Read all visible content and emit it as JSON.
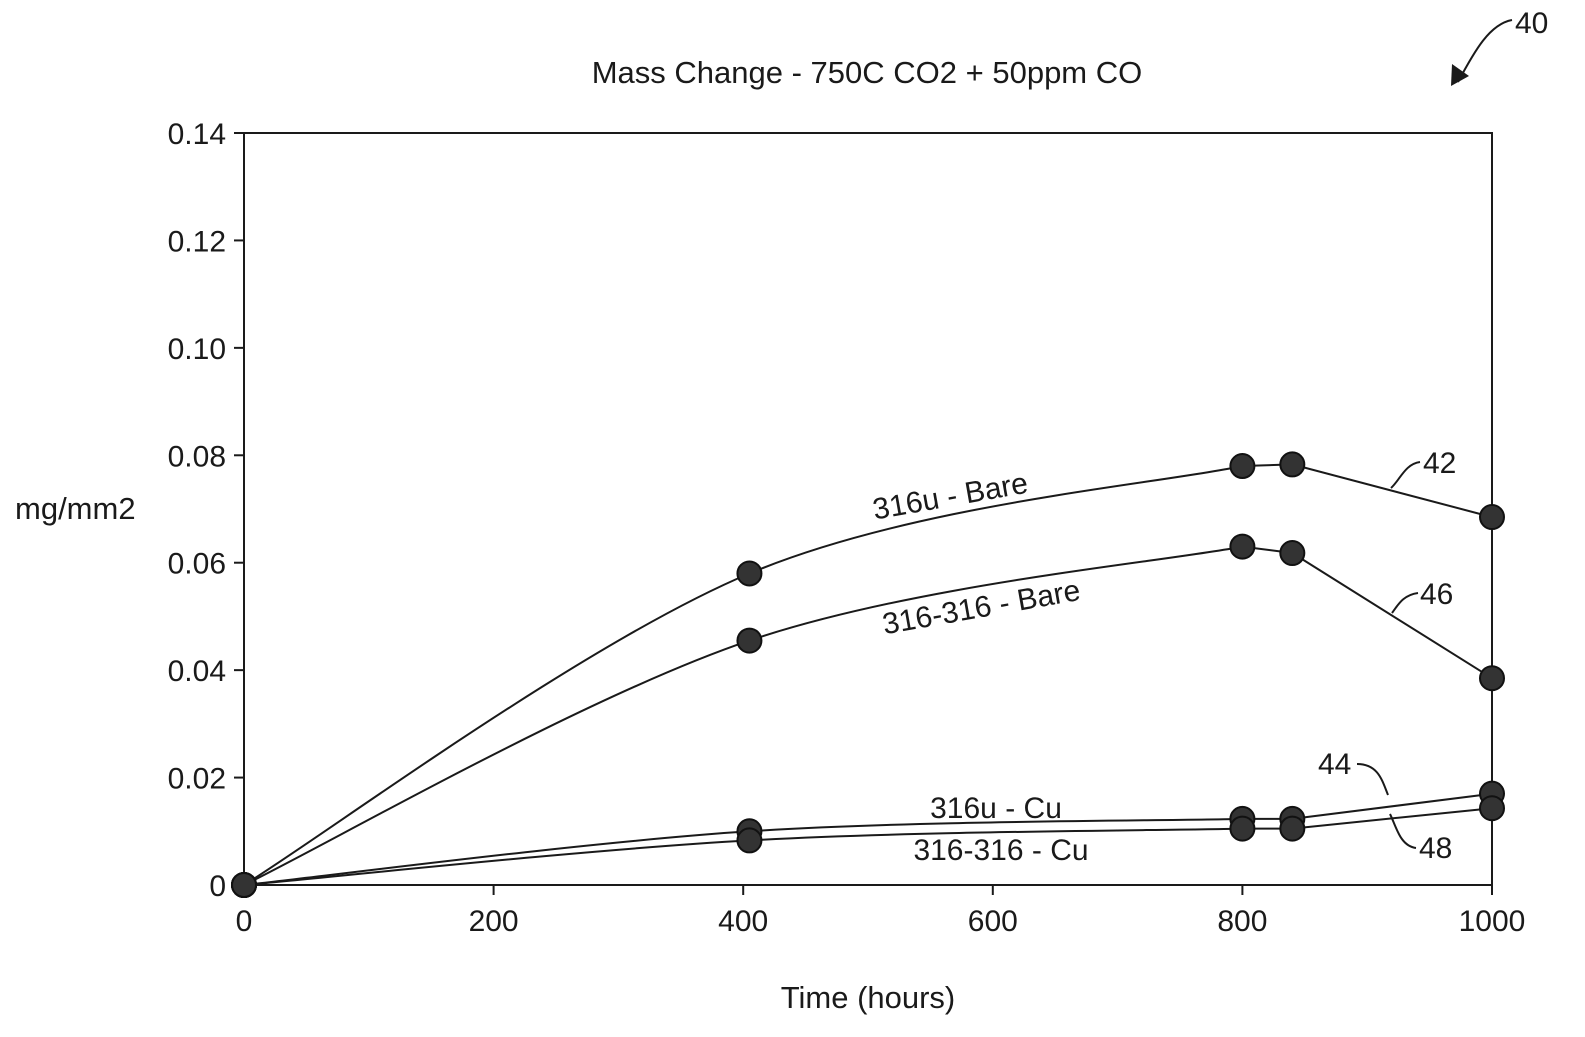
{
  "figure_ref": "40",
  "chart_data": {
    "type": "line",
    "title": "Mass Change - 750C CO2 + 50ppm CO",
    "xlabel": "Time (hours)",
    "ylabel": "mg/mm2",
    "xlim": [
      0,
      1000
    ],
    "ylim": [
      0,
      0.14
    ],
    "x_ticks": [
      "0",
      "200",
      "400",
      "600",
      "800",
      "1000"
    ],
    "y_ticks": [
      "0",
      "0.02",
      "0.04",
      "0.06",
      "0.08",
      "0.10",
      "0.12",
      "0.14"
    ],
    "x_tick_values": [
      0,
      200,
      400,
      600,
      800,
      1000
    ],
    "y_tick_values": [
      0,
      0.02,
      0.04,
      0.06,
      0.08,
      0.1,
      0.12,
      0.14
    ],
    "grid": false,
    "legend": "none",
    "series": [
      {
        "name": "316u - Bare",
        "ref": "42",
        "x": [
          0,
          405,
          800,
          840,
          1000
        ],
        "y": [
          0,
          0.058,
          0.078,
          0.0783,
          0.0685
        ]
      },
      {
        "name": "316-316 - Bare",
        "ref": "46",
        "x": [
          0,
          405,
          800,
          840,
          1000
        ],
        "y": [
          0,
          0.0455,
          0.063,
          0.0618,
          0.0385
        ]
      },
      {
        "name": "316u - Cu",
        "ref": "44",
        "x": [
          0,
          405,
          800,
          840,
          1000
        ],
        "y": [
          0,
          0.01,
          0.0123,
          0.0123,
          0.017
        ]
      },
      {
        "name": "316-316 - Cu",
        "ref": "48",
        "x": [
          0,
          405,
          800,
          840,
          1000
        ],
        "y": [
          0,
          0.0083,
          0.0105,
          0.0105,
          0.0143
        ]
      }
    ],
    "marker_color": "#333333",
    "line_color": "#1a1a1a"
  }
}
